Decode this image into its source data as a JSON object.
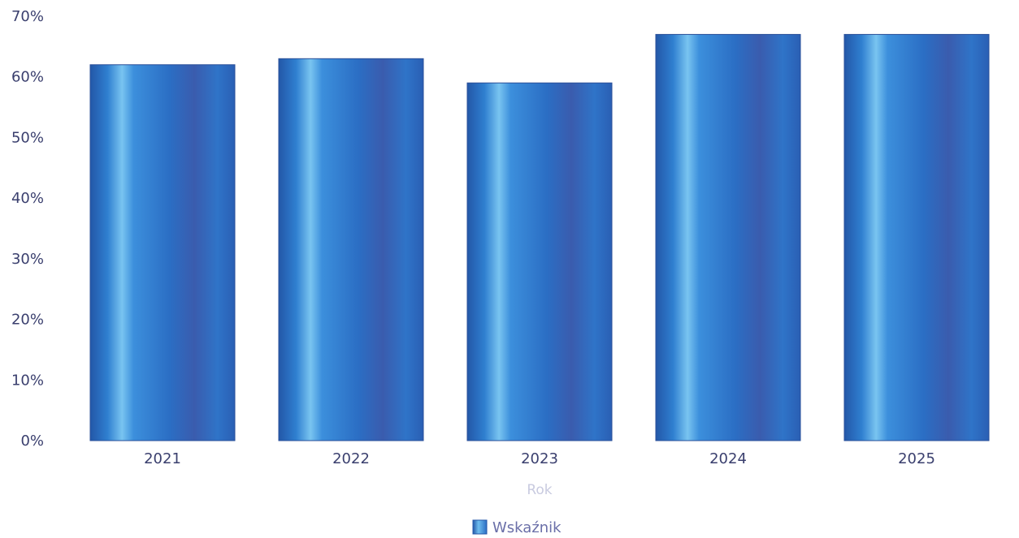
{
  "chart_data": {
    "type": "bar",
    "categories": [
      "2021",
      "2022",
      "2023",
      "2024",
      "2025"
    ],
    "series": [
      {
        "name": "Wskaźnik",
        "values": [
          62,
          63,
          59,
          67,
          67
        ]
      }
    ],
    "xlabel": "Rok",
    "ylabel": "",
    "ylim": [
      0,
      70
    ],
    "y_ticks": [
      {
        "value": 0,
        "label": "0%"
      },
      {
        "value": 10,
        "label": "10%"
      },
      {
        "value": 20,
        "label": "20%"
      },
      {
        "value": 30,
        "label": "30%"
      },
      {
        "value": 40,
        "label": "40%"
      },
      {
        "value": 50,
        "label": "50%"
      },
      {
        "value": 60,
        "label": "60%"
      },
      {
        "value": 70,
        "label": "70%"
      }
    ],
    "grid": false,
    "legend_position": "bottom-center",
    "colors": {
      "bar": "#2f7fd0",
      "bar_dark": "#2357a8",
      "bar_light": "#5fb2ea",
      "legend_text": "#6a6fa8",
      "axis_title": "#c9cbe0"
    }
  }
}
